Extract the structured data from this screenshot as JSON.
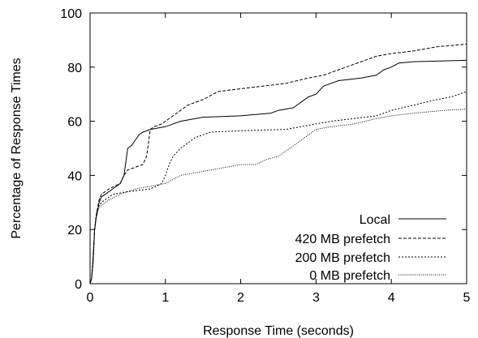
{
  "chart_data": {
    "type": "line",
    "title": "",
    "xlabel": "Response Time (seconds)",
    "ylabel": "Percentage of Response Times",
    "xlim": [
      0,
      5
    ],
    "ylim": [
      0,
      100
    ],
    "x_ticks": [
      0,
      1,
      2,
      3,
      4,
      5
    ],
    "y_ticks": [
      0,
      20,
      40,
      60,
      80,
      100
    ],
    "grid": false,
    "legend_position": "bottom-right",
    "series": [
      {
        "name": "Local",
        "dash": "solid",
        "points": [
          [
            0,
            0
          ],
          [
            0.02,
            2
          ],
          [
            0.04,
            8
          ],
          [
            0.06,
            20
          ],
          [
            0.08,
            24
          ],
          [
            0.1,
            27
          ],
          [
            0.12,
            30
          ],
          [
            0.15,
            32
          ],
          [
            0.2,
            33
          ],
          [
            0.3,
            35
          ],
          [
            0.4,
            37
          ],
          [
            0.45,
            40
          ],
          [
            0.48,
            46
          ],
          [
            0.5,
            50
          ],
          [
            0.55,
            51
          ],
          [
            0.6,
            53
          ],
          [
            0.65,
            55
          ],
          [
            0.7,
            56
          ],
          [
            0.8,
            57
          ],
          [
            1.0,
            58
          ],
          [
            1.2,
            60
          ],
          [
            1.5,
            61.5
          ],
          [
            2.0,
            62
          ],
          [
            2.4,
            63
          ],
          [
            2.5,
            64
          ],
          [
            2.7,
            65
          ],
          [
            2.8,
            67
          ],
          [
            2.9,
            69
          ],
          [
            3.0,
            70
          ],
          [
            3.1,
            73
          ],
          [
            3.3,
            75
          ],
          [
            3.6,
            76
          ],
          [
            3.8,
            77
          ],
          [
            3.9,
            79
          ],
          [
            4.0,
            80
          ],
          [
            4.1,
            81.5
          ],
          [
            4.3,
            82
          ],
          [
            5.0,
            82.5
          ]
        ]
      },
      {
        "name": "420 MB prefetch",
        "dash": "dashed",
        "points": [
          [
            0,
            0
          ],
          [
            0.02,
            2
          ],
          [
            0.04,
            8
          ],
          [
            0.06,
            20
          ],
          [
            0.08,
            25
          ],
          [
            0.1,
            28
          ],
          [
            0.12,
            31
          ],
          [
            0.15,
            33
          ],
          [
            0.25,
            35
          ],
          [
            0.4,
            37
          ],
          [
            0.45,
            40
          ],
          [
            0.5,
            42
          ],
          [
            0.6,
            43
          ],
          [
            0.7,
            44
          ],
          [
            0.75,
            47
          ],
          [
            0.78,
            53
          ],
          [
            0.8,
            57
          ],
          [
            0.85,
            58
          ],
          [
            0.95,
            59
          ],
          [
            1.1,
            62
          ],
          [
            1.2,
            64
          ],
          [
            1.3,
            66
          ],
          [
            1.5,
            68
          ],
          [
            1.7,
            71
          ],
          [
            2.0,
            72
          ],
          [
            2.3,
            73
          ],
          [
            2.6,
            74
          ],
          [
            2.9,
            76
          ],
          [
            3.1,
            77
          ],
          [
            3.3,
            79
          ],
          [
            3.6,
            82
          ],
          [
            3.8,
            84
          ],
          [
            4.0,
            85
          ],
          [
            4.3,
            86
          ],
          [
            4.6,
            87.5
          ],
          [
            5.0,
            88.5
          ]
        ]
      },
      {
        "name": "200 MB prefetch",
        "dash": "dotted",
        "points": [
          [
            0,
            0
          ],
          [
            0.02,
            2
          ],
          [
            0.04,
            10
          ],
          [
            0.06,
            20
          ],
          [
            0.08,
            25
          ],
          [
            0.1,
            28
          ],
          [
            0.15,
            30
          ],
          [
            0.3,
            33
          ],
          [
            0.5,
            34
          ],
          [
            0.8,
            35
          ],
          [
            0.95,
            37
          ],
          [
            1.0,
            40
          ],
          [
            1.05,
            44
          ],
          [
            1.1,
            47
          ],
          [
            1.2,
            50
          ],
          [
            1.3,
            52
          ],
          [
            1.4,
            54
          ],
          [
            1.5,
            55
          ],
          [
            1.6,
            56
          ],
          [
            2.0,
            56.5
          ],
          [
            2.6,
            57
          ],
          [
            2.8,
            58
          ],
          [
            3.0,
            59
          ],
          [
            3.2,
            60
          ],
          [
            3.5,
            61
          ],
          [
            3.8,
            62
          ],
          [
            4.0,
            64
          ],
          [
            4.3,
            66
          ],
          [
            4.6,
            68
          ],
          [
            4.8,
            69
          ],
          [
            5.0,
            71
          ]
        ]
      },
      {
        "name": "0 MB prefetch",
        "dash": "fine-dotted",
        "points": [
          [
            0,
            0
          ],
          [
            0.02,
            2
          ],
          [
            0.04,
            10
          ],
          [
            0.06,
            20
          ],
          [
            0.08,
            24
          ],
          [
            0.1,
            27
          ],
          [
            0.15,
            29
          ],
          [
            0.25,
            31
          ],
          [
            0.4,
            33
          ],
          [
            0.6,
            35
          ],
          [
            0.8,
            36
          ],
          [
            1.0,
            37
          ],
          [
            1.2,
            40
          ],
          [
            1.4,
            41
          ],
          [
            1.6,
            42
          ],
          [
            1.8,
            43
          ],
          [
            2.0,
            44
          ],
          [
            2.2,
            44
          ],
          [
            2.35,
            46
          ],
          [
            2.5,
            47
          ],
          [
            2.6,
            49
          ],
          [
            2.7,
            51
          ],
          [
            2.8,
            53
          ],
          [
            2.9,
            55
          ],
          [
            3.0,
            57
          ],
          [
            3.2,
            58
          ],
          [
            3.5,
            59
          ],
          [
            3.8,
            61
          ],
          [
            4.0,
            62
          ],
          [
            4.3,
            63
          ],
          [
            4.7,
            64
          ],
          [
            5.0,
            64.5
          ]
        ]
      }
    ]
  }
}
